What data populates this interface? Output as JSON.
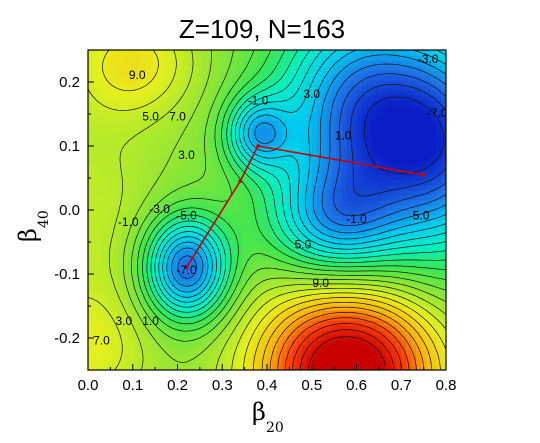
{
  "chart_data": {
    "type": "heatmap",
    "title": "Z=109, N=163",
    "xlabel": {
      "symbol": "β",
      "subscript": "20"
    },
    "ylabel": {
      "symbol": "β",
      "subscript": "40"
    },
    "xlim": [
      0.0,
      0.8
    ],
    "ylim": [
      -0.25,
      0.25
    ],
    "x_ticks": [
      {
        "value": 0.0,
        "label": "0.0"
      },
      {
        "value": 0.1,
        "label": "0.1"
      },
      {
        "value": 0.2,
        "label": "0.2"
      },
      {
        "value": 0.3,
        "label": "0.3"
      },
      {
        "value": 0.4,
        "label": "0.4"
      },
      {
        "value": 0.5,
        "label": "0.5"
      },
      {
        "value": 0.6,
        "label": "0.6"
      },
      {
        "value": 0.7,
        "label": "0.7"
      },
      {
        "value": 0.8,
        "label": "0.8"
      }
    ],
    "y_ticks": [
      {
        "value": 0.2,
        "label": "0.2"
      },
      {
        "value": 0.1,
        "label": "0.1"
      },
      {
        "value": 0.0,
        "label": "0.0"
      },
      {
        "value": -0.1,
        "label": "-0.1"
      },
      {
        "value": -0.2,
        "label": "-0.2"
      }
    ],
    "contour_interval": 1.0,
    "color_range": [
      -9.0,
      17.0
    ],
    "colormap": [
      "#0a1ec8",
      "#1e6ee6",
      "#00c8f0",
      "#00f0c8",
      "#3ce650",
      "#96e632",
      "#e6f01e",
      "#fab40a",
      "#ff3c00",
      "#c80000"
    ],
    "wells": [
      {
        "x": 0.22,
        "y": -0.09,
        "depth": -7.8,
        "sx": 0.065,
        "sy": 0.055
      },
      {
        "x": 0.38,
        "y": 0.12,
        "depth": -3.2,
        "sx": 0.05,
        "sy": 0.04
      },
      {
        "x": 0.8,
        "y": 0.1,
        "depth": -6.5,
        "sx": 0.12,
        "sy": 0.12
      },
      {
        "x": 0.6,
        "y": 0.15,
        "depth": -6.5,
        "sx": 0.13,
        "sy": 0.12
      },
      {
        "x": 0.55,
        "y": -0.02,
        "depth": -2.5,
        "sx": 0.1,
        "sy": 0.06
      }
    ],
    "hills": [
      {
        "x": 0.58,
        "y": -0.25,
        "height": 14.0,
        "sx": 0.14,
        "sy": 0.09
      },
      {
        "x": 0.1,
        "y": 0.23,
        "height": 4.0,
        "sx": 0.1,
        "sy": 0.06
      },
      {
        "x": 0.0,
        "y": -0.22,
        "height": 3.0,
        "sx": 0.1,
        "sy": 0.07
      },
      {
        "x": 0.0,
        "y": 0.0,
        "height": 2.0,
        "sx": 0.12,
        "sy": 0.12
      }
    ],
    "base_level": 5.0,
    "contour_labels": [
      {
        "text": "9.0",
        "x": 0.11,
        "y": 0.21
      },
      {
        "text": "5.0",
        "x": 0.14,
        "y": 0.145
      },
      {
        "text": "7.0",
        "x": 0.2,
        "y": 0.145
      },
      {
        "text": "3.0",
        "x": 0.22,
        "y": 0.085
      },
      {
        "text": "-1.0",
        "x": 0.38,
        "y": 0.17
      },
      {
        "text": "3.0",
        "x": 0.5,
        "y": 0.18
      },
      {
        "text": "1.0",
        "x": 0.57,
        "y": 0.115
      },
      {
        "text": "-3.0",
        "x": 0.76,
        "y": 0.235
      },
      {
        "text": "-7.0",
        "x": 0.78,
        "y": 0.15
      },
      {
        "text": "-3.0",
        "x": 0.16,
        "y": 0.0
      },
      {
        "text": "-5.0",
        "x": 0.22,
        "y": -0.01
      },
      {
        "text": "-1.0",
        "x": 0.09,
        "y": -0.02
      },
      {
        "text": "-7.0",
        "x": 0.22,
        "y": -0.095
      },
      {
        "text": "5.0",
        "x": 0.48,
        "y": -0.055
      },
      {
        "text": "9.0",
        "x": 0.52,
        "y": -0.115
      },
      {
        "text": "-1.0",
        "x": 0.6,
        "y": -0.015
      },
      {
        "text": "-5.0",
        "x": 0.74,
        "y": -0.01
      },
      {
        "text": "3.0",
        "x": 0.08,
        "y": -0.175
      },
      {
        "text": "1.0",
        "x": 0.14,
        "y": -0.175
      },
      {
        "text": "7.0",
        "x": 0.03,
        "y": -0.205
      }
    ],
    "path": [
      {
        "x": 0.22,
        "y": -0.09
      },
      {
        "x": 0.34,
        "y": 0.045
      },
      {
        "x": 0.38,
        "y": 0.1
      },
      {
        "x": 0.75,
        "y": 0.055
      }
    ],
    "path_color": "#cc0000"
  }
}
